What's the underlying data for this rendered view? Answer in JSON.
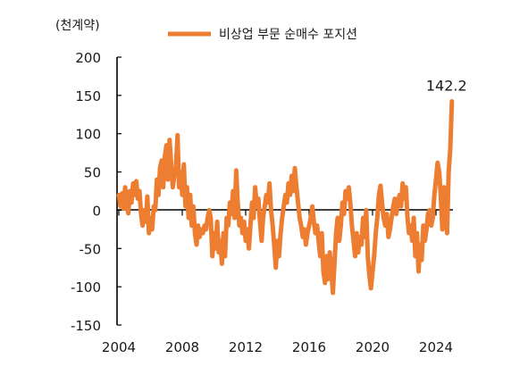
{
  "chart_data": {
    "type": "line",
    "unit_label": "(천계약)",
    "legend": {
      "position": "top-center"
    },
    "series": [
      {
        "name": "비상업 부문 순매수 포지션",
        "color": "#ED7D31",
        "points": [
          [
            2004.0,
            20
          ],
          [
            2004.1,
            5
          ],
          [
            2004.2,
            22
          ],
          [
            2004.3,
            2
          ],
          [
            2004.4,
            30
          ],
          [
            2004.5,
            8
          ],
          [
            2004.6,
            -4
          ],
          [
            2004.7,
            25
          ],
          [
            2004.8,
            10
          ],
          [
            2004.9,
            35
          ],
          [
            2005.0,
            20
          ],
          [
            2005.1,
            38
          ],
          [
            2005.2,
            15
          ],
          [
            2005.3,
            25
          ],
          [
            2005.4,
            -5
          ],
          [
            2005.5,
            -20
          ],
          [
            2005.6,
            0
          ],
          [
            2005.7,
            -15
          ],
          [
            2005.8,
            18
          ],
          [
            2005.9,
            -30
          ],
          [
            2006.0,
            -10
          ],
          [
            2006.1,
            -25
          ],
          [
            2006.2,
            5
          ],
          [
            2006.3,
            0
          ],
          [
            2006.4,
            40
          ],
          [
            2006.5,
            20
          ],
          [
            2006.6,
            55
          ],
          [
            2006.7,
            65
          ],
          [
            2006.8,
            30
          ],
          [
            2006.9,
            70
          ],
          [
            2007.0,
            85
          ],
          [
            2007.1,
            40
          ],
          [
            2007.2,
            92
          ],
          [
            2007.3,
            60
          ],
          [
            2007.4,
            30
          ],
          [
            2007.5,
            45
          ],
          [
            2007.6,
            55
          ],
          [
            2007.7,
            98
          ],
          [
            2007.8,
            30
          ],
          [
            2007.9,
            50
          ],
          [
            2008.0,
            20
          ],
          [
            2008.1,
            60
          ],
          [
            2008.2,
            5
          ],
          [
            2008.3,
            30
          ],
          [
            2008.4,
            -10
          ],
          [
            2008.5,
            20
          ],
          [
            2008.6,
            -20
          ],
          [
            2008.7,
            5
          ],
          [
            2008.8,
            -30
          ],
          [
            2008.9,
            -45
          ],
          [
            2009.0,
            -20
          ],
          [
            2009.1,
            -35
          ],
          [
            2009.2,
            -25
          ],
          [
            2009.3,
            -30
          ],
          [
            2009.4,
            -20
          ],
          [
            2009.5,
            -25
          ],
          [
            2009.6,
            -10
          ],
          [
            2009.7,
            0
          ],
          [
            2009.8,
            -10
          ],
          [
            2009.9,
            -60
          ],
          [
            2010.0,
            -30
          ],
          [
            2010.1,
            -50
          ],
          [
            2010.2,
            -15
          ],
          [
            2010.3,
            -55
          ],
          [
            2010.4,
            -40
          ],
          [
            2010.5,
            -70
          ],
          [
            2010.6,
            -30
          ],
          [
            2010.7,
            -60
          ],
          [
            2010.8,
            -10
          ],
          [
            2010.9,
            -20
          ],
          [
            2011.0,
            10
          ],
          [
            2011.1,
            -5
          ],
          [
            2011.2,
            25
          ],
          [
            2011.3,
            -10
          ],
          [
            2011.4,
            52
          ],
          [
            2011.5,
            10
          ],
          [
            2011.6,
            -20
          ],
          [
            2011.7,
            -10
          ],
          [
            2011.8,
            -30
          ],
          [
            2011.9,
            -15
          ],
          [
            2012.0,
            -40
          ],
          [
            2012.1,
            -25
          ],
          [
            2012.2,
            -50
          ],
          [
            2012.3,
            -20
          ],
          [
            2012.4,
            10
          ],
          [
            2012.5,
            -10
          ],
          [
            2012.6,
            30
          ],
          [
            2012.7,
            5
          ],
          [
            2012.8,
            15
          ],
          [
            2012.9,
            -15
          ],
          [
            2013.0,
            -40
          ],
          [
            2013.1,
            -10
          ],
          [
            2013.2,
            5
          ],
          [
            2013.3,
            20
          ],
          [
            2013.4,
            10
          ],
          [
            2013.5,
            35
          ],
          [
            2013.6,
            0
          ],
          [
            2013.7,
            -20
          ],
          [
            2013.8,
            -45
          ],
          [
            2013.9,
            -75
          ],
          [
            2014.0,
            -40
          ],
          [
            2014.1,
            -60
          ],
          [
            2014.2,
            -30
          ],
          [
            2014.3,
            -10
          ],
          [
            2014.4,
            5
          ],
          [
            2014.5,
            20
          ],
          [
            2014.6,
            10
          ],
          [
            2014.7,
            35
          ],
          [
            2014.8,
            20
          ],
          [
            2014.9,
            45
          ],
          [
            2015.0,
            25
          ],
          [
            2015.1,
            55
          ],
          [
            2015.2,
            30
          ],
          [
            2015.3,
            10
          ],
          [
            2015.4,
            -10
          ],
          [
            2015.5,
            -20
          ],
          [
            2015.6,
            -35
          ],
          [
            2015.7,
            -25
          ],
          [
            2015.8,
            -45
          ],
          [
            2015.9,
            -30
          ],
          [
            2016.0,
            -20
          ],
          [
            2016.1,
            -10
          ],
          [
            2016.2,
            5
          ],
          [
            2016.3,
            -15
          ],
          [
            2016.4,
            -30
          ],
          [
            2016.5,
            -20
          ],
          [
            2016.6,
            -40
          ],
          [
            2016.7,
            -60
          ],
          [
            2016.8,
            -30
          ],
          [
            2016.9,
            -80
          ],
          [
            2017.0,
            -95
          ],
          [
            2017.1,
            -60
          ],
          [
            2017.2,
            -90
          ],
          [
            2017.3,
            -55
          ],
          [
            2017.4,
            -80
          ],
          [
            2017.5,
            -108
          ],
          [
            2017.6,
            -70
          ],
          [
            2017.7,
            -30
          ],
          [
            2017.8,
            -10
          ],
          [
            2017.9,
            -40
          ],
          [
            2018.0,
            -20
          ],
          [
            2018.1,
            10
          ],
          [
            2018.2,
            -5
          ],
          [
            2018.3,
            25
          ],
          [
            2018.4,
            15
          ],
          [
            2018.5,
            30
          ],
          [
            2018.6,
            10
          ],
          [
            2018.7,
            -20
          ],
          [
            2018.8,
            -40
          ],
          [
            2018.9,
            -60
          ],
          [
            2019.0,
            -30
          ],
          [
            2019.1,
            -55
          ],
          [
            2019.2,
            -35
          ],
          [
            2019.3,
            -45
          ],
          [
            2019.4,
            -10
          ],
          [
            2019.5,
            -35
          ],
          [
            2019.6,
            0
          ],
          [
            2019.7,
            -60
          ],
          [
            2019.8,
            -85
          ],
          [
            2019.9,
            -102
          ],
          [
            2020.0,
            -80
          ],
          [
            2020.1,
            -60
          ],
          [
            2020.2,
            -30
          ],
          [
            2020.3,
            -10
          ],
          [
            2020.4,
            20
          ],
          [
            2020.5,
            32
          ],
          [
            2020.6,
            10
          ],
          [
            2020.7,
            -10
          ],
          [
            2020.8,
            -20
          ],
          [
            2020.9,
            -5
          ],
          [
            2021.0,
            -35
          ],
          [
            2021.1,
            -25
          ],
          [
            2021.2,
            -10
          ],
          [
            2021.3,
            5
          ],
          [
            2021.4,
            15
          ],
          [
            2021.5,
            -5
          ],
          [
            2021.6,
            10
          ],
          [
            2021.7,
            20
          ],
          [
            2021.8,
            5
          ],
          [
            2021.9,
            35
          ],
          [
            2022.0,
            15
          ],
          [
            2022.1,
            30
          ],
          [
            2022.2,
            -10
          ],
          [
            2022.3,
            -30
          ],
          [
            2022.4,
            -20
          ],
          [
            2022.5,
            -40
          ],
          [
            2022.6,
            -10
          ],
          [
            2022.7,
            -60
          ],
          [
            2022.8,
            -30
          ],
          [
            2022.9,
            -80
          ],
          [
            2023.0,
            -45
          ],
          [
            2023.1,
            -65
          ],
          [
            2023.2,
            -20
          ],
          [
            2023.3,
            -40
          ],
          [
            2023.4,
            -25
          ],
          [
            2023.5,
            -5
          ],
          [
            2023.6,
            0
          ],
          [
            2023.7,
            -20
          ],
          [
            2023.8,
            -10
          ],
          [
            2023.9,
            20
          ],
          [
            2024.0,
            40
          ],
          [
            2024.1,
            62
          ],
          [
            2024.2,
            50
          ],
          [
            2024.3,
            20
          ],
          [
            2024.4,
            -25
          ],
          [
            2024.5,
            30
          ],
          [
            2024.6,
            10
          ],
          [
            2024.7,
            -30
          ],
          [
            2024.8,
            50
          ],
          [
            2024.9,
            80
          ],
          [
            2025.0,
            142.2
          ]
        ]
      }
    ],
    "x_ticks": [
      2004,
      2008,
      2012,
      2016,
      2020,
      2024
    ],
    "x_tick_labels": [
      "2004",
      "2008",
      "2012",
      "2016",
      "2020",
      "2024"
    ],
    "xlim": [
      2004,
      2028
    ],
    "y_ticks": [
      200,
      150,
      100,
      50,
      0,
      -50,
      -100,
      -150
    ],
    "y_tick_labels": [
      "200",
      "150",
      "100",
      "50",
      "0",
      "-50",
      "-100",
      "-150"
    ],
    "ylim": [
      -150,
      200
    ],
    "annotation": {
      "text": "142.2",
      "x": 2025.0,
      "y": 142.2
    },
    "grid": false
  }
}
